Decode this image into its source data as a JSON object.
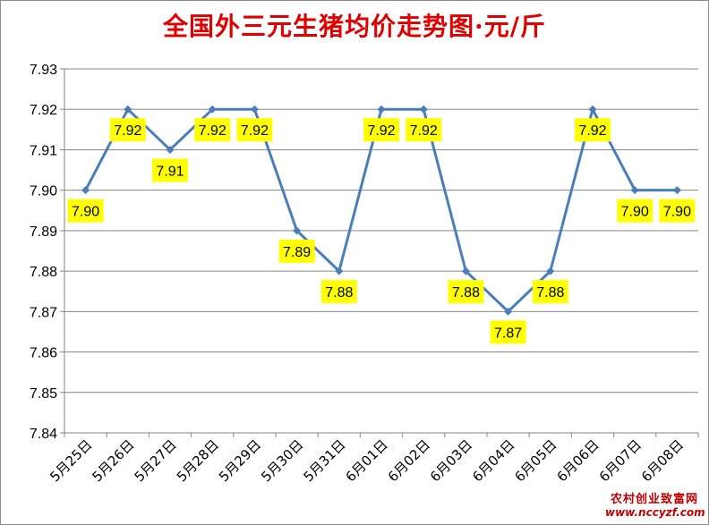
{
  "watermark": {
    "line1": "农村创业致富网",
    "line2": "www.nccyzf.com"
  },
  "chart_data": {
    "type": "line",
    "title": "全国外三元生猪均价走势图·元/斤",
    "xlabel": "",
    "ylabel": "",
    "categories": [
      "5月25日",
      "5月26日",
      "5月27日",
      "5月28日",
      "5月29日",
      "5月30日",
      "5月31日",
      "6月01日",
      "6月02日",
      "6月03日",
      "6月04日",
      "6月05日",
      "6月06日",
      "6月07日",
      "6月08日"
    ],
    "values": [
      7.9,
      7.92,
      7.91,
      7.92,
      7.92,
      7.89,
      7.88,
      7.92,
      7.92,
      7.88,
      7.87,
      7.88,
      7.92,
      7.9,
      7.9
    ],
    "data_labels": [
      "7.90",
      "7.92",
      "7.91",
      "7.92",
      "7.92",
      "7.89",
      "7.88",
      "7.92",
      "7.92",
      "7.88",
      "7.87",
      "7.88",
      "7.92",
      "7.90",
      "7.90"
    ],
    "ylim": [
      7.84,
      7.93
    ],
    "yticks": [
      "7.84",
      "7.85",
      "7.86",
      "7.87",
      "7.88",
      "7.89",
      "7.90",
      "7.91",
      "7.92",
      "7.93"
    ],
    "grid": true,
    "legend": "none",
    "line_color": "#4a7ebb",
    "label_bg_color": "#ffff00"
  }
}
